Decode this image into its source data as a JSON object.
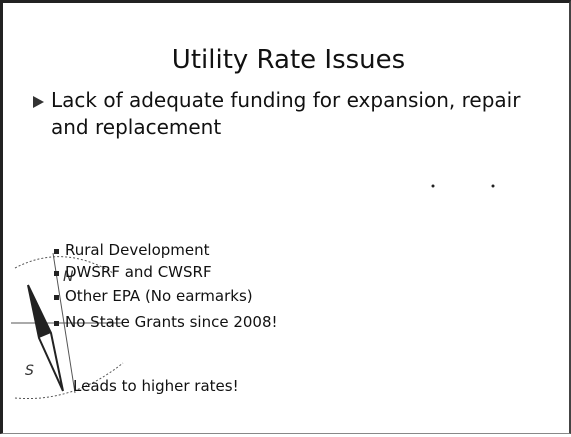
{
  "slide": {
    "title": "Utility Rate Issues",
    "bullet": "Lack of adequate funding for expansion, repair and replacement",
    "sub_bullets": [
      "Rural Development",
      "DWSRF and CWSRF",
      "Other EPA (No earmarks)",
      "No State Grants since 2008!"
    ],
    "conclusion": "Leads to higher rates!"
  }
}
